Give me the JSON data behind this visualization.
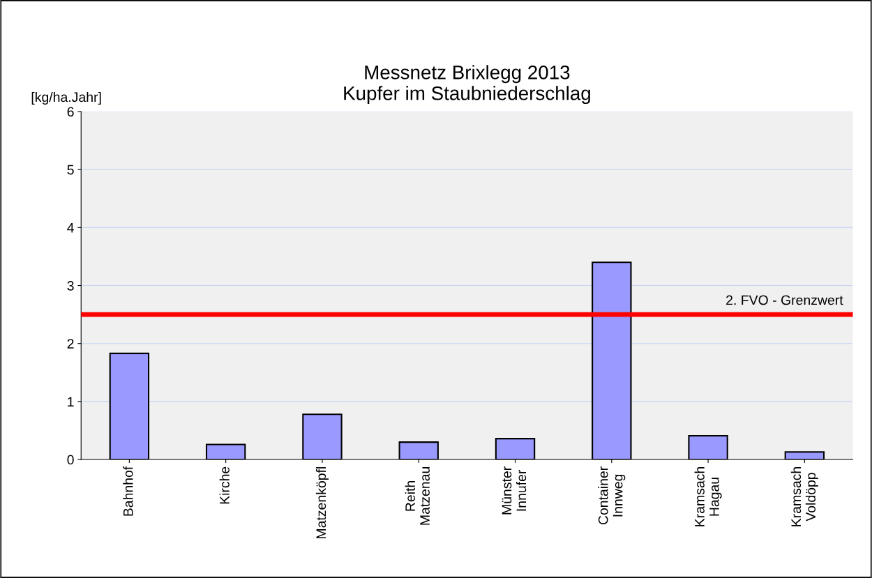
{
  "chart_data": {
    "type": "bar",
    "title": "Messnetz Brixlegg 2013\nKupfer im Staubniederschlag",
    "ylabel": "[kg/ha.Jahr]",
    "categories": [
      "Bahnhof",
      "Kirche",
      "Matzenköpfl",
      "Reith\nMatzenau",
      "Münster\nInnufer",
      "Container\nInnweg",
      "Kramsach\nHagau",
      "Kramsach\nVoldöpp"
    ],
    "values": [
      1.83,
      0.26,
      0.78,
      0.3,
      0.36,
      3.4,
      0.41,
      0.13
    ],
    "color": "#9999ff",
    "ylim": [
      0,
      6
    ],
    "yticks": [
      0,
      1,
      2,
      3,
      4,
      5,
      6
    ],
    "grid": "y",
    "ref_lines": [
      {
        "axis": "y",
        "value": 2.5,
        "label": "2. FVO - Grenzwert",
        "color": "#ff0000"
      }
    ]
  }
}
